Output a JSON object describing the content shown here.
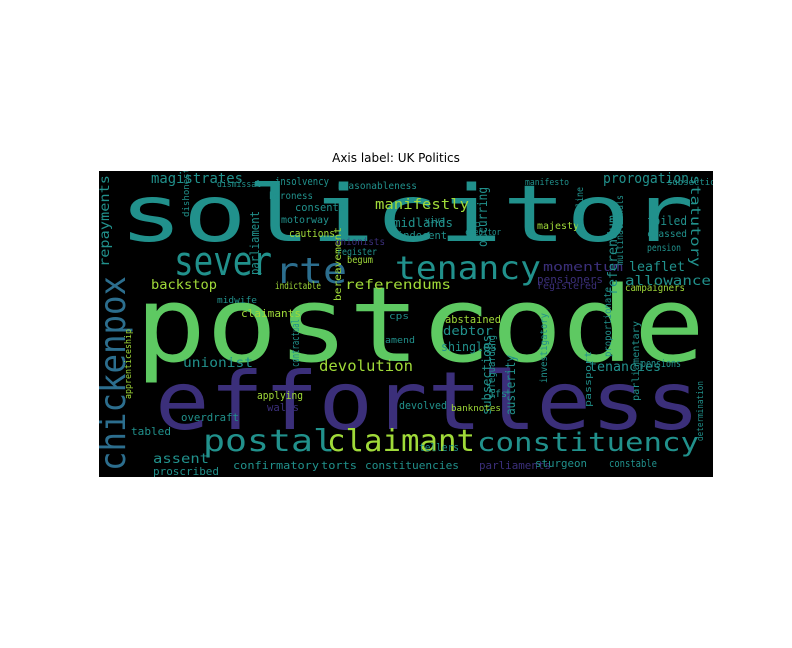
{
  "title": "Axis label: UK Politics",
  "palette": {
    "background": "#000000",
    "green": "#5ec962",
    "teal": "#21918c",
    "purple": "#3b2f7a",
    "blue": "#2c6e8e",
    "lime": "#a0da39",
    "dark_purple": "#472d7b",
    "light_green": "#7ad151",
    "cyan": "#22a884"
  },
  "words": [
    "solicitor",
    "postcode",
    "effortless",
    "sever",
    "rte",
    "tenancy",
    "chickenpox",
    "postal",
    "claimant",
    "constituency",
    "magistrates",
    "manifestly",
    "prorogation",
    "statutory",
    "repayments",
    "backstop",
    "referendums",
    "momentum",
    "leaflet",
    "allowance",
    "referendum",
    "devolution",
    "tenancies",
    "bereavement",
    "pensioners",
    "debtor",
    "shingles",
    "assent",
    "proscribed",
    "confirmatory",
    "torts",
    "constituencies",
    "parliaments",
    "sturgeon",
    "constable",
    "tellers",
    "austerity",
    "devolved",
    "overdraft",
    "wales",
    "tabled",
    "applying",
    "contractual",
    "claimants",
    "unionist",
    "midlands",
    "indecent",
    "majesty",
    "occurring",
    "abstained",
    "foiled",
    "classed",
    "pension",
    "consents",
    "cautions",
    "motorway",
    "baroness",
    "parliament",
    "insolvency",
    "reasonableness",
    "subsections",
    "safeguarding",
    "multinationals",
    "campaigners",
    "proportionate",
    "apprenticeship",
    "register",
    "begum",
    "indictable",
    "amend",
    "cps",
    "ifs",
    "investigatory",
    "registered",
    "unionists",
    "midwife",
    "banknotes",
    "passport",
    "parliamentary",
    "pensions",
    "dishonestly",
    "subsection",
    "dismissal",
    "helpline",
    "viva",
    "creditor",
    "determination",
    "manifesto",
    "gp"
  ]
}
